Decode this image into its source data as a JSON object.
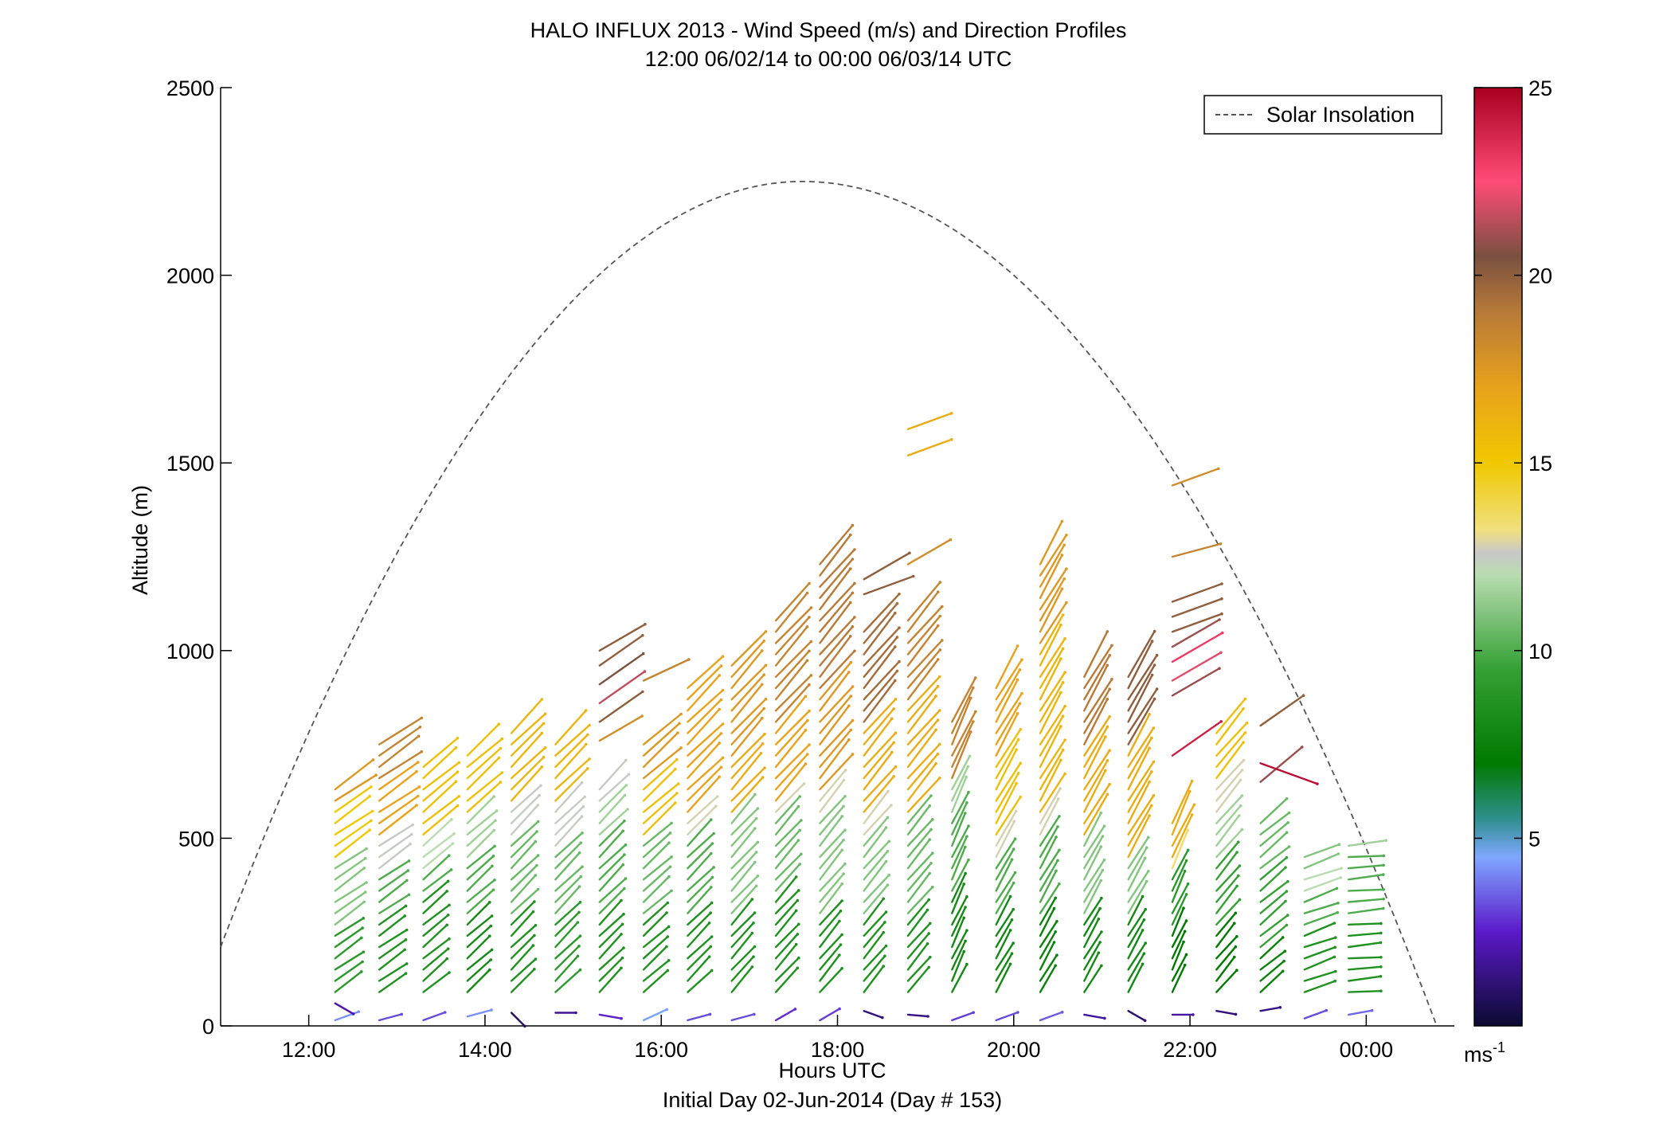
{
  "chart_data": {
    "type": "wind-barb-profile",
    "title": "HALO INFLUX 2013 - Wind Speed (m/s) and Direction Profiles",
    "subtitle": "12:00 06/02/14 to 00:00 06/03/14  UTC",
    "xlabel": "Hours UTC",
    "xlabel2": "Initial Day 02-Jun-2014 (Day # 153)",
    "ylabel": "Altitude (m)",
    "xlim_hours": [
      11.0,
      25.0
    ],
    "ylim": [
      0,
      2500
    ],
    "x_ticks": [
      {
        "hour": 12,
        "label": "12:00"
      },
      {
        "hour": 14,
        "label": "14:00"
      },
      {
        "hour": 16,
        "label": "16:00"
      },
      {
        "hour": 18,
        "label": "18:00"
      },
      {
        "hour": 20,
        "label": "20:00"
      },
      {
        "hour": 22,
        "label": "22:00"
      },
      {
        "hour": 24,
        "label": "00:00"
      }
    ],
    "y_ticks": [
      {
        "value": 0,
        "label": "0"
      },
      {
        "value": 500,
        "label": "500"
      },
      {
        "value": 1000,
        "label": "1000"
      },
      {
        "value": 1500,
        "label": "1500"
      },
      {
        "value": 2000,
        "label": "2000"
      },
      {
        "value": 2500,
        "label": "2500"
      }
    ],
    "legend": {
      "label": "Solar Insolation",
      "placement": "top-right",
      "color": "#555555"
    },
    "solar_insolation_curve": {
      "start_hour": 11.0,
      "start_alt": 210,
      "peak_hour": 17.6,
      "peak_alt": 2250,
      "end_hour": 24.8,
      "end_alt": 0
    },
    "colorbar": {
      "range": [
        0,
        25
      ],
      "ticks": [
        {
          "value": 5,
          "label": "5"
        },
        {
          "value": 10,
          "label": "10"
        },
        {
          "value": 15,
          "label": "15"
        },
        {
          "value": 20,
          "label": "20"
        },
        {
          "value": 25,
          "label": "25"
        }
      ],
      "unit_base": "ms",
      "unit_exp": "-1",
      "stops": [
        {
          "v": 0,
          "c": "#0a0a30"
        },
        {
          "v": 2.5,
          "c": "#5b19c8"
        },
        {
          "v": 4.5,
          "c": "#7fa7ff"
        },
        {
          "v": 5.5,
          "c": "#2f8f8f"
        },
        {
          "v": 7,
          "c": "#007a00"
        },
        {
          "v": 9.5,
          "c": "#34a034"
        },
        {
          "v": 12,
          "c": "#b8dcb0"
        },
        {
          "v": 12.6,
          "c": "#c8c8c8"
        },
        {
          "v": 13.2,
          "c": "#f0e080"
        },
        {
          "v": 15,
          "c": "#f0c800"
        },
        {
          "v": 17,
          "c": "#e8a21c"
        },
        {
          "v": 19,
          "c": "#b87a38"
        },
        {
          "v": 20.5,
          "c": "#7a5040"
        },
        {
          "v": 22.5,
          "c": "#ff4b78"
        },
        {
          "v": 25,
          "c": "#a80020"
        }
      ]
    },
    "profiles": [
      {
        "hour": 12.3,
        "top": 650,
        "dir": 55,
        "high": [
          {
            "alt": 15,
            "speed": 4.2,
            "dir": 70
          },
          {
            "alt": 60,
            "speed": 2.0,
            "dir": 120
          }
        ],
        "levels": [
          [
            0,
            9
          ],
          [
            250,
            11
          ],
          [
            450,
            15
          ],
          [
            600,
            17.5
          ]
        ]
      },
      {
        "hour": 12.8,
        "top": 760,
        "dir": 55,
        "high": [
          {
            "alt": 15,
            "speed": 3.2,
            "dir": 75
          }
        ],
        "levels": [
          [
            0,
            8.5
          ],
          [
            300,
            10
          ],
          [
            400,
            12.5
          ],
          [
            500,
            17
          ],
          [
            650,
            18.5
          ]
        ]
      },
      {
        "hour": 13.3,
        "top": 690,
        "dir": 50,
        "high": [
          {
            "alt": 15,
            "speed": 3.2,
            "dir": 70
          }
        ],
        "levels": [
          [
            0,
            8.5
          ],
          [
            350,
            10
          ],
          [
            400,
            12
          ],
          [
            500,
            15.5
          ]
        ]
      },
      {
        "hour": 13.8,
        "top": 730,
        "dir": 48,
        "high": [
          {
            "alt": 25,
            "speed": 4.2,
            "dir": 75
          }
        ],
        "levels": [
          [
            0,
            8
          ],
          [
            300,
            10
          ],
          [
            450,
            11.5
          ],
          [
            550,
            15.5
          ]
        ]
      },
      {
        "hour": 14.3,
        "top": 800,
        "dir": 45,
        "high": [
          {
            "alt": 35,
            "speed": 0.8,
            "dir": 135
          }
        ],
        "levels": [
          [
            0,
            8.5
          ],
          [
            300,
            10.5
          ],
          [
            500,
            12.5
          ],
          [
            600,
            16
          ]
        ]
      },
      {
        "hour": 14.8,
        "top": 760,
        "dir": 45,
        "high": [
          {
            "alt": 35,
            "speed": 1.6,
            "dir": 90
          }
        ],
        "levels": [
          [
            0,
            9
          ],
          [
            300,
            10.5
          ],
          [
            480,
            12.5
          ],
          [
            580,
            16
          ]
        ]
      },
      {
        "hour": 15.3,
        "top": 650,
        "dir": 45,
        "high": [
          {
            "alt": 30,
            "speed": 2.6,
            "dir": 100
          },
          {
            "alt": 760,
            "speed": 18,
            "dir": 60
          },
          {
            "alt": 810,
            "speed": 20,
            "dir": 55
          },
          {
            "alt": 860,
            "speed": 21.5,
            "dir": 55
          },
          {
            "alt": 910,
            "speed": 20.5,
            "dir": 55
          },
          {
            "alt": 960,
            "speed": 20,
            "dir": 55
          },
          {
            "alt": 1000,
            "speed": 20,
            "dir": 60
          }
        ],
        "levels": [
          [
            0,
            8.5
          ],
          [
            300,
            10
          ],
          [
            500,
            11.5
          ],
          [
            600,
            12.5
          ]
        ]
      },
      {
        "hour": 15.8,
        "top": 760,
        "dir": 48,
        "high": [
          {
            "alt": 15,
            "speed": 4.6,
            "dir": 65
          },
          {
            "alt": 920,
            "speed": 18.5,
            "dir": 65
          }
        ],
        "levels": [
          [
            0,
            8.5
          ],
          [
            300,
            10.5
          ],
          [
            500,
            15.5
          ],
          [
            650,
            17.5
          ]
        ]
      },
      {
        "hour": 16.3,
        "top": 900,
        "dir": 45,
        "high": [
          {
            "alt": 15,
            "speed": 3.2,
            "dir": 75
          }
        ],
        "levels": [
          [
            0,
            8.5
          ],
          [
            300,
            10
          ],
          [
            500,
            12.8
          ],
          [
            560,
            17
          ]
        ]
      },
      {
        "hour": 16.8,
        "top": 960,
        "dir": 42,
        "high": [
          {
            "alt": 15,
            "speed": 3.2,
            "dir": 75
          }
        ],
        "levels": [
          [
            0,
            8.5
          ],
          [
            300,
            11
          ],
          [
            550,
            16.5
          ],
          [
            700,
            17.5
          ]
        ]
      },
      {
        "hour": 17.3,
        "top": 1090,
        "dir": 42,
        "high": [
          {
            "alt": 15,
            "speed": 2.8,
            "dir": 60
          }
        ],
        "levels": [
          [
            0,
            8.5
          ],
          [
            350,
            10.5
          ],
          [
            550,
            12.8
          ],
          [
            600,
            17
          ],
          [
            800,
            18.5
          ]
        ]
      },
      {
        "hour": 17.8,
        "top": 1250,
        "dir": 40,
        "high": [
          {
            "alt": 15,
            "speed": 3.0,
            "dir": 60
          }
        ],
        "levels": [
          [
            0,
            8.5
          ],
          [
            300,
            11
          ],
          [
            550,
            12.8
          ],
          [
            620,
            17.5
          ],
          [
            900,
            19
          ]
        ]
      },
      {
        "hour": 18.3,
        "top": 1060,
        "dir": 40,
        "high": [
          {
            "alt": 40,
            "speed": 1.2,
            "dir": 110
          },
          {
            "alt": 1150,
            "speed": 20,
            "dir": 70
          },
          {
            "alt": 1190,
            "speed": 20,
            "dir": 60
          }
        ],
        "levels": [
          [
            0,
            8.5
          ],
          [
            300,
            11
          ],
          [
            500,
            12.8
          ],
          [
            550,
            16.5
          ],
          [
            800,
            19.5
          ]
        ]
      },
      {
        "hour": 18.8,
        "top": 1090,
        "dir": 40,
        "high": [
          {
            "alt": 30,
            "speed": 1.4,
            "dir": 95
          },
          {
            "alt": 1230,
            "speed": 18,
            "dir": 60
          },
          {
            "alt": 1520,
            "speed": 16.5,
            "dir": 70
          },
          {
            "alt": 1590,
            "speed": 16.5,
            "dir": 70
          }
        ],
        "levels": [
          [
            0,
            8.5
          ],
          [
            300,
            10.5
          ],
          [
            550,
            16.5
          ],
          [
            850,
            18.5
          ]
        ]
      },
      {
        "hour": 19.3,
        "top": 820,
        "dir": 25,
        "high": [
          {
            "alt": 15,
            "speed": 3.0,
            "dir": 70
          }
        ],
        "levels": [
          [
            0,
            8
          ],
          [
            350,
            10
          ],
          [
            550,
            11.5
          ],
          [
            650,
            18.5
          ]
        ]
      },
      {
        "hour": 19.8,
        "top": 900,
        "dir": 30,
        "high": [
          {
            "alt": 15,
            "speed": 3.2,
            "dir": 70
          }
        ],
        "levels": [
          [
            0,
            8
          ],
          [
            300,
            10
          ],
          [
            450,
            12.8
          ],
          [
            500,
            15.5
          ],
          [
            700,
            17
          ]
        ]
      },
      {
        "hour": 20.3,
        "top": 1250,
        "dir": 30,
        "high": [
          {
            "alt": 15,
            "speed": 3.4,
            "dir": 70
          }
        ],
        "levels": [
          [
            0,
            7.5
          ],
          [
            300,
            10
          ],
          [
            500,
            12.8
          ],
          [
            550,
            16
          ],
          [
            1000,
            17.5
          ]
        ]
      },
      {
        "hour": 20.8,
        "top": 930,
        "dir": 30,
        "high": [
          {
            "alt": 30,
            "speed": 1.8,
            "dir": 100
          }
        ],
        "levels": [
          [
            0,
            8
          ],
          [
            300,
            11
          ],
          [
            500,
            16.5
          ],
          [
            750,
            19
          ]
        ]
      },
      {
        "hour": 21.3,
        "top": 940,
        "dir": 30,
        "high": [
          {
            "alt": 40,
            "speed": 1.0,
            "dir": 120
          }
        ],
        "levels": [
          [
            0,
            8
          ],
          [
            300,
            11
          ],
          [
            450,
            16.5
          ],
          [
            750,
            20
          ]
        ]
      },
      {
        "hour": 21.8,
        "top": 560,
        "dir": 25,
        "high": [
          {
            "alt": 30,
            "speed": 1.8,
            "dir": 90
          },
          {
            "alt": 720,
            "speed": 24,
            "dir": 55
          },
          {
            "alt": 880,
            "speed": 21,
            "dir": 60
          },
          {
            "alt": 920,
            "speed": 22,
            "dir": 60
          },
          {
            "alt": 970,
            "speed": 23,
            "dir": 60
          },
          {
            "alt": 1010,
            "speed": 21,
            "dir": 60
          },
          {
            "alt": 1050,
            "speed": 20,
            "dir": 70
          },
          {
            "alt": 1090,
            "speed": 20,
            "dir": 70
          },
          {
            "alt": 1130,
            "speed": 20,
            "dir": 70
          },
          {
            "alt": 1250,
            "speed": 18.5,
            "dir": 75
          },
          {
            "alt": 1440,
            "speed": 18,
            "dir": 70
          }
        ],
        "levels": [
          [
            0,
            7
          ],
          [
            250,
            9
          ],
          [
            400,
            13.5
          ],
          [
            450,
            16.5
          ]
        ]
      },
      {
        "hour": 22.3,
        "top": 800,
        "dir": 40,
        "high": [
          {
            "alt": 40,
            "speed": 1.2,
            "dir": 100
          }
        ],
        "levels": [
          [
            0,
            7
          ],
          [
            250,
            9.5
          ],
          [
            450,
            11.5
          ],
          [
            560,
            12.8
          ],
          [
            650,
            15.5
          ]
        ]
      },
      {
        "hour": 22.8,
        "top": 560,
        "dir": 50,
        "high": [
          {
            "alt": 40,
            "speed": 1.4,
            "dir": 80
          },
          {
            "alt": 650,
            "speed": 21,
            "dir": 50
          },
          {
            "alt": 700,
            "speed": 24.5,
            "dir": 110
          },
          {
            "alt": 800,
            "speed": 20,
            "dir": 55
          }
        ],
        "levels": [
          [
            0,
            7.5
          ],
          [
            200,
            9.5
          ],
          [
            420,
            10.5
          ]
        ]
      },
      {
        "hour": 23.3,
        "top": 470,
        "dir": 70,
        "high": [
          {
            "alt": 20,
            "speed": 3.2,
            "dir": 70
          }
        ],
        "levels": [
          [
            0,
            8.5
          ],
          [
            250,
            10
          ],
          [
            350,
            12
          ],
          [
            400,
            11
          ]
        ]
      },
      {
        "hour": 23.8,
        "top": 500,
        "dir": 85,
        "high": [
          {
            "alt": 30,
            "speed": 3.6,
            "dir": 80
          }
        ],
        "levels": [
          [
            0,
            8.5
          ],
          [
            300,
            10
          ],
          [
            480,
            11.5
          ]
        ]
      }
    ]
  }
}
